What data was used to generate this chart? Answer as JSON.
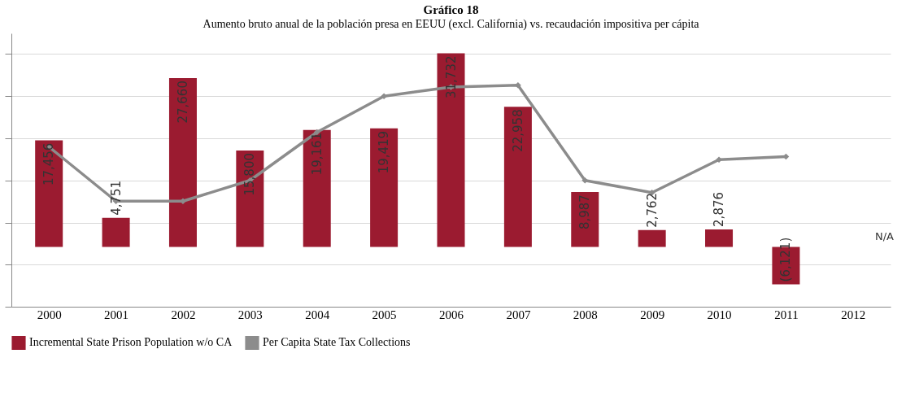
{
  "chart_data": {
    "type": "bar",
    "title": "Gráfico 18",
    "subtitle": "Aumento bruto anual de la población presa en EEUU (excl. California) vs. recaudación impositiva per cápita",
    "categories": [
      "2000",
      "2001",
      "2002",
      "2003",
      "2004",
      "2005",
      "2006",
      "2007",
      "2008",
      "2009",
      "2010",
      "2011",
      "2012"
    ],
    "series": [
      {
        "name": "Incremental State Prison Population w/o CA",
        "color": "#9b1b30",
        "values": [
          17456,
          4751,
          27660,
          15800,
          19161,
          19419,
          31732,
          22958,
          8987,
          2762,
          2876,
          -6121,
          null
        ],
        "value_labels": [
          "17,456",
          "4,751",
          "27,660",
          "15,800",
          "19,161",
          "19,419",
          "31,732",
          "22,958",
          "8,987",
          "2,762",
          "2,876",
          "(6,121)",
          null
        ]
      },
      {
        "name": "Per Capita State Tax Collections",
        "type": "line",
        "color": "#8c8c8c",
        "marker": "diamond",
        "values": [
          16400,
          7500,
          7500,
          10900,
          18800,
          24700,
          26200,
          26500,
          10900,
          8900,
          14300,
          14800,
          null
        ]
      }
    ],
    "annotations": [
      "N/A"
    ],
    "ylim": [
      -9800,
      35000
    ],
    "yticks": [
      {
        "value": -9800,
        "label": null
      },
      {
        "value": -2900,
        "label": null
      },
      {
        "value": 4000,
        "label": null
      },
      {
        "value": 10900,
        "label": null
      },
      {
        "value": 17800,
        "label": null
      },
      {
        "value": 24700,
        "label": null
      },
      {
        "value": 31600,
        "label": null
      }
    ],
    "tick_labels": "x",
    "grid": "y",
    "legend": "bottom"
  }
}
